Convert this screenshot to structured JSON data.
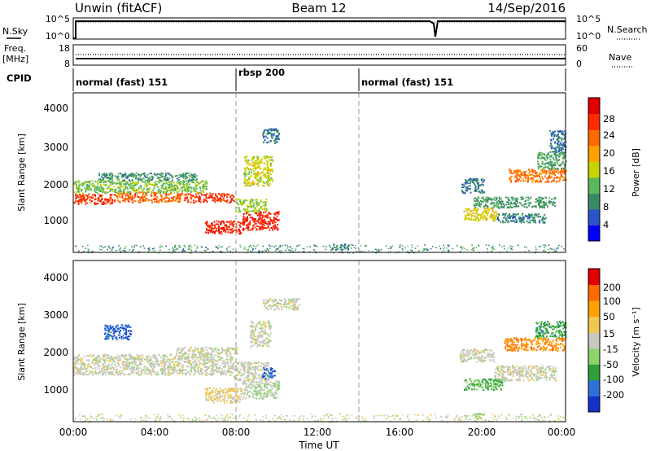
{
  "header": {
    "station": "Unwin (fitACF)",
    "beam": "Beam 12",
    "date": "14/Sep/2016"
  },
  "nsky_panel": {
    "left_label": "N.Sky",
    "right_label": "N.Search",
    "left_ticks": [
      "10^5",
      "10^0"
    ],
    "right_ticks": [
      "10^5",
      "10^0"
    ]
  },
  "freq_panel": {
    "left_label_line1": "Freq.",
    "left_label_line2": "[MHz]",
    "right_label": "Nave",
    "left_ticks": [
      "18",
      "8"
    ],
    "right_ticks": [
      "60",
      "0"
    ]
  },
  "cpid_panel": {
    "label": "CPID",
    "segments": [
      {
        "start_hour": 0,
        "end_hour": 8,
        "name": "normal (fast) 151"
      },
      {
        "start_hour": 8,
        "end_hour": 14,
        "name": "rbsp 200"
      },
      {
        "start_hour": 14,
        "end_hour": 24,
        "name": "normal (fast) 151"
      }
    ]
  },
  "power_panel": {
    "ylabel": "Slant Range [km]",
    "yticks": [
      "4000",
      "3000",
      "2000",
      "1000"
    ],
    "colorbar_label": "Power [dB]",
    "colorbar_ticks": [
      "28",
      "24",
      "20",
      "16",
      "12",
      "8",
      "4"
    ]
  },
  "velocity_panel": {
    "ylabel": "Slant Range [km]",
    "yticks": [
      "4000",
      "3000",
      "2000",
      "1000"
    ],
    "colorbar_label": "Velocity [m s⁻¹]",
    "colorbar_ticks": [
      "200",
      "100",
      "50",
      "15",
      "-15",
      "-50",
      "-100",
      "-200"
    ]
  },
  "x_axis": {
    "label": "Time UT",
    "ticks": [
      "00:00",
      "04:00",
      "08:00",
      "12:00",
      "16:00",
      "20:00",
      "00:00"
    ]
  },
  "chart_data": [
    {
      "type": "heatmap",
      "title": "Unwin (fitACF)",
      "quantity": "Power",
      "xlabel": "Time UT",
      "ylabel": "Slant Range [km]",
      "xlim_hours": [
        0,
        24
      ],
      "ylim_km": [
        180,
        4500
      ],
      "colorbar_label": "Power [dB]",
      "color_range_db": [
        0,
        30
      ],
      "colors": [
        "#0000ff",
        "#2a54c8",
        "#3a8a6a",
        "#5cb85c",
        "#c8d400",
        "#ffa000",
        "#ff6a00",
        "#ff2a00",
        "#e00000"
      ],
      "regions": [
        {
          "t0": 0.0,
          "t1": 2.0,
          "r0": 1500,
          "r1": 1780,
          "power": 26
        },
        {
          "t0": 2.0,
          "t1": 5.4,
          "r0": 1550,
          "r1": 1830,
          "power": 23
        },
        {
          "t0": 5.4,
          "t1": 7.8,
          "r0": 1550,
          "r1": 1800,
          "power": 26
        },
        {
          "t0": 0.0,
          "t1": 6.5,
          "r0": 1800,
          "r1": 2150,
          "power": 12
        },
        {
          "t0": 1.2,
          "t1": 6.0,
          "r0": 2150,
          "r1": 2350,
          "power": 8
        },
        {
          "t0": 6.4,
          "t1": 8.2,
          "r0": 700,
          "r1": 1050,
          "power": 27
        },
        {
          "t0": 8.2,
          "t1": 10.0,
          "r0": 800,
          "r1": 1300,
          "power": 27
        },
        {
          "t0": 7.9,
          "t1": 9.4,
          "r0": 1300,
          "r1": 1650,
          "power": 14
        },
        {
          "t0": 8.3,
          "t1": 9.7,
          "r0": 2000,
          "r1": 2800,
          "power": 15
        },
        {
          "t0": 9.2,
          "t1": 10.0,
          "r0": 3150,
          "r1": 3550,
          "power": 6
        },
        {
          "t0": 12.6,
          "t1": 13.4,
          "r0": 250,
          "r1": 420,
          "power": 6
        },
        {
          "t0": 18.9,
          "t1": 20.0,
          "r0": 1800,
          "r1": 2200,
          "power": 7
        },
        {
          "t0": 19.5,
          "t1": 23.5,
          "r0": 1400,
          "r1": 1700,
          "power": 9
        },
        {
          "t0": 19.0,
          "t1": 20.6,
          "r0": 1050,
          "r1": 1400,
          "power": 16
        },
        {
          "t0": 20.6,
          "t1": 23.0,
          "r0": 1000,
          "r1": 1250,
          "power": 7
        },
        {
          "t0": 21.2,
          "t1": 24.0,
          "r0": 2100,
          "r1": 2450,
          "power": 22
        },
        {
          "t0": 22.6,
          "t1": 24.0,
          "r0": 2450,
          "r1": 2900,
          "power": 10
        },
        {
          "t0": 23.2,
          "t1": 24.0,
          "r0": 2900,
          "r1": 3500,
          "power": 6
        }
      ]
    },
    {
      "type": "heatmap",
      "quantity": "Velocity",
      "xlabel": "Time UT",
      "ylabel": "Slant Range [km]",
      "xlim_hours": [
        0,
        24
      ],
      "ylim_km": [
        180,
        4500
      ],
      "colorbar_label": "Velocity [m s⁻¹]",
      "color_range_ms": [
        -250,
        250
      ],
      "colors": [
        "#1432c8",
        "#2f6fd9",
        "#2e9f3a",
        "#8fd46a",
        "#c8c8c0",
        "#f0c850",
        "#ffa000",
        "#ff6a00",
        "#e00000"
      ],
      "regions": [
        {
          "t0": 0.0,
          "t1": 7.8,
          "r0": 1450,
          "r1": 2000,
          "velocity": 0
        },
        {
          "t0": 5.0,
          "t1": 8.0,
          "r0": 2000,
          "r1": 2200,
          "velocity": 0
        },
        {
          "t0": 6.4,
          "t1": 8.2,
          "r0": 700,
          "r1": 1100,
          "velocity": 40
        },
        {
          "t0": 8.2,
          "t1": 10.0,
          "r0": 800,
          "r1": 1300,
          "velocity": -20
        },
        {
          "t0": 7.8,
          "t1": 9.5,
          "r0": 1300,
          "r1": 1800,
          "velocity": 0
        },
        {
          "t0": 9.2,
          "t1": 9.8,
          "r0": 1350,
          "r1": 1650,
          "velocity": -200
        },
        {
          "t0": 8.6,
          "t1": 9.6,
          "r0": 2200,
          "r1": 2900,
          "velocity": 0
        },
        {
          "t0": 1.5,
          "t1": 2.8,
          "r0": 2400,
          "r1": 2800,
          "velocity": -200
        },
        {
          "t0": 9.2,
          "t1": 11.0,
          "r0": 3200,
          "r1": 3500,
          "velocity": 0
        },
        {
          "t0": 18.8,
          "t1": 20.5,
          "r0": 1800,
          "r1": 2150,
          "velocity": 0
        },
        {
          "t0": 19.0,
          "t1": 21.0,
          "r0": 1050,
          "r1": 1350,
          "velocity": -100
        },
        {
          "t0": 20.5,
          "t1": 23.5,
          "r0": 1300,
          "r1": 1700,
          "velocity": 0
        },
        {
          "t0": 21.0,
          "t1": 24.0,
          "r0": 2100,
          "r1": 2450,
          "velocity": 150
        },
        {
          "t0": 22.5,
          "t1": 24.0,
          "r0": 2450,
          "r1": 2900,
          "velocity": -120
        },
        {
          "t0": 19.5,
          "t1": 20.0,
          "r0": 250,
          "r1": 420,
          "velocity": -50
        }
      ]
    }
  ]
}
